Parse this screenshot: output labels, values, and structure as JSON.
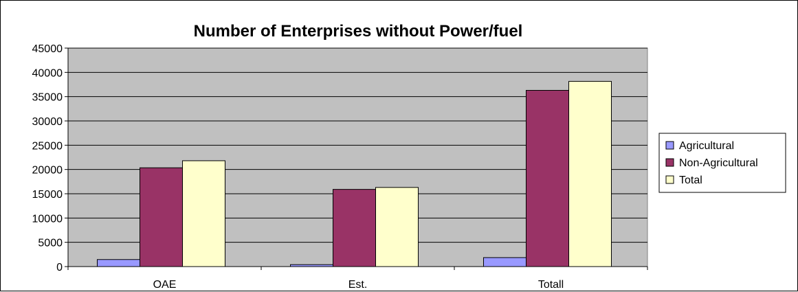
{
  "chart_data": {
    "type": "bar",
    "title": "Number of Enterprises without Power/fuel",
    "xlabel": "",
    "ylabel": "",
    "categories": [
      "OAE",
      "Est.",
      "Totall"
    ],
    "series": [
      {
        "name": "Agricultural",
        "color": "#9999ff",
        "values": [
          1450,
          400,
          1850
        ]
      },
      {
        "name": "Non-Agricultural",
        "color": "#993366",
        "values": [
          20350,
          15900,
          36300
        ]
      },
      {
        "name": "Total",
        "color": "#ffffcc",
        "values": [
          21800,
          16300,
          38150
        ]
      }
    ],
    "yticks": [
      "0",
      "5000",
      "10000",
      "15000",
      "20000",
      "25000",
      "30000",
      "35000",
      "40000",
      "45000"
    ],
    "ylim": [
      0,
      45000
    ],
    "grid": true,
    "legend_position": "right",
    "plot_background": "#c0c0c0"
  }
}
